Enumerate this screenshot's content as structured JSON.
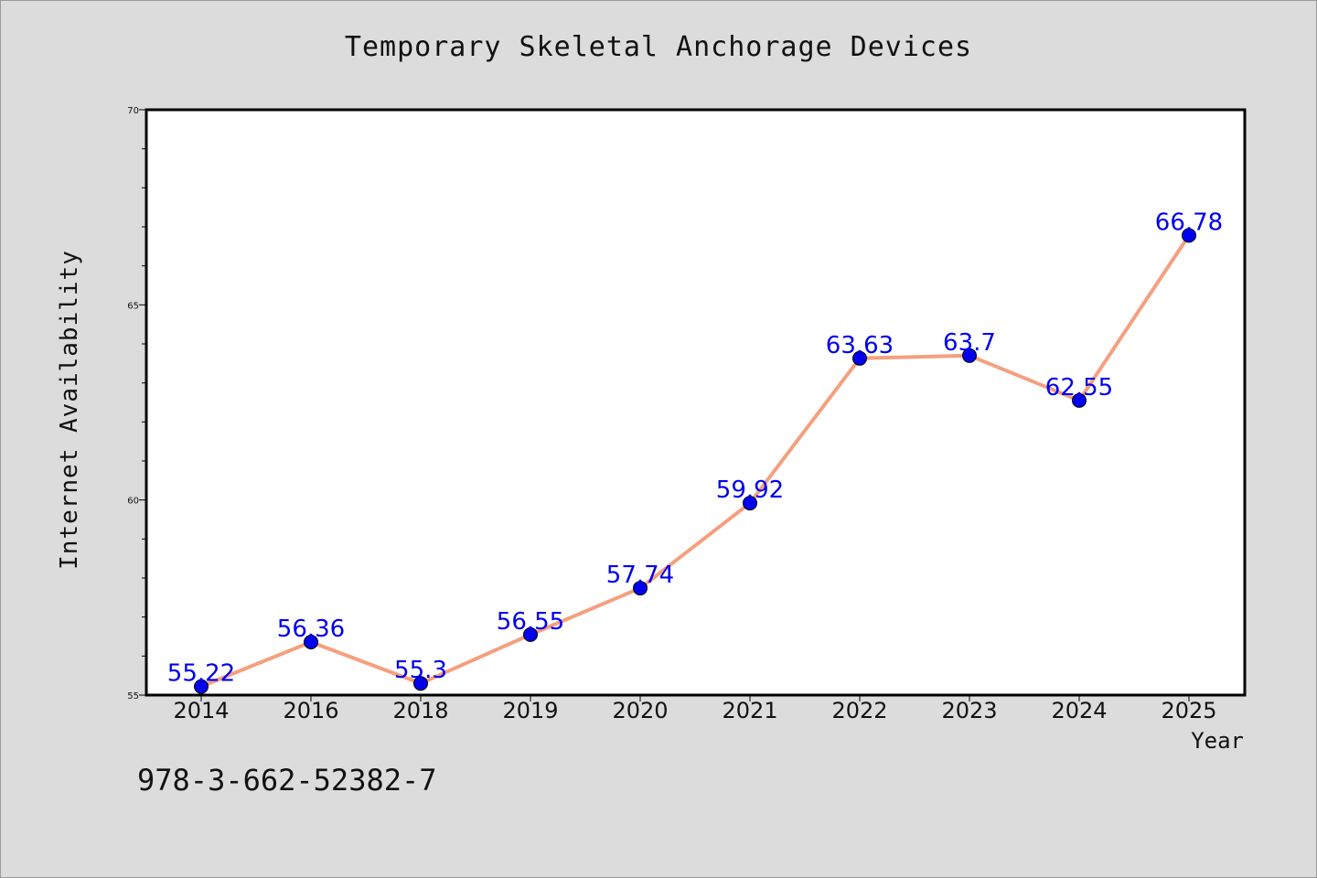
{
  "footer": {
    "code": "978-3-662-52382-7"
  },
  "chart_data": {
    "type": "line",
    "title": "Temporary Skeletal Anchorage Devices",
    "xlabel": "Year",
    "ylabel": "Internet Availability",
    "categories": [
      "2014",
      "2016",
      "2018",
      "2019",
      "2020",
      "2021",
      "2022",
      "2023",
      "2024",
      "2025"
    ],
    "values": [
      55.22,
      56.36,
      55.3,
      56.55,
      57.74,
      59.92,
      63.63,
      63.7,
      62.55,
      66.78
    ],
    "data_labels": [
      "55.22",
      "56.36",
      "55.3",
      "56.55",
      "57.74",
      "59.92",
      "63.63",
      "63.7",
      "62.55",
      "66.78"
    ],
    "ylim": [
      55,
      70
    ],
    "yticks": [
      "55",
      "60",
      "65",
      "70"
    ],
    "grid": false,
    "line_color": "#f4a07f",
    "marker_color": "#0000ee",
    "label_color": "#0000ee"
  }
}
